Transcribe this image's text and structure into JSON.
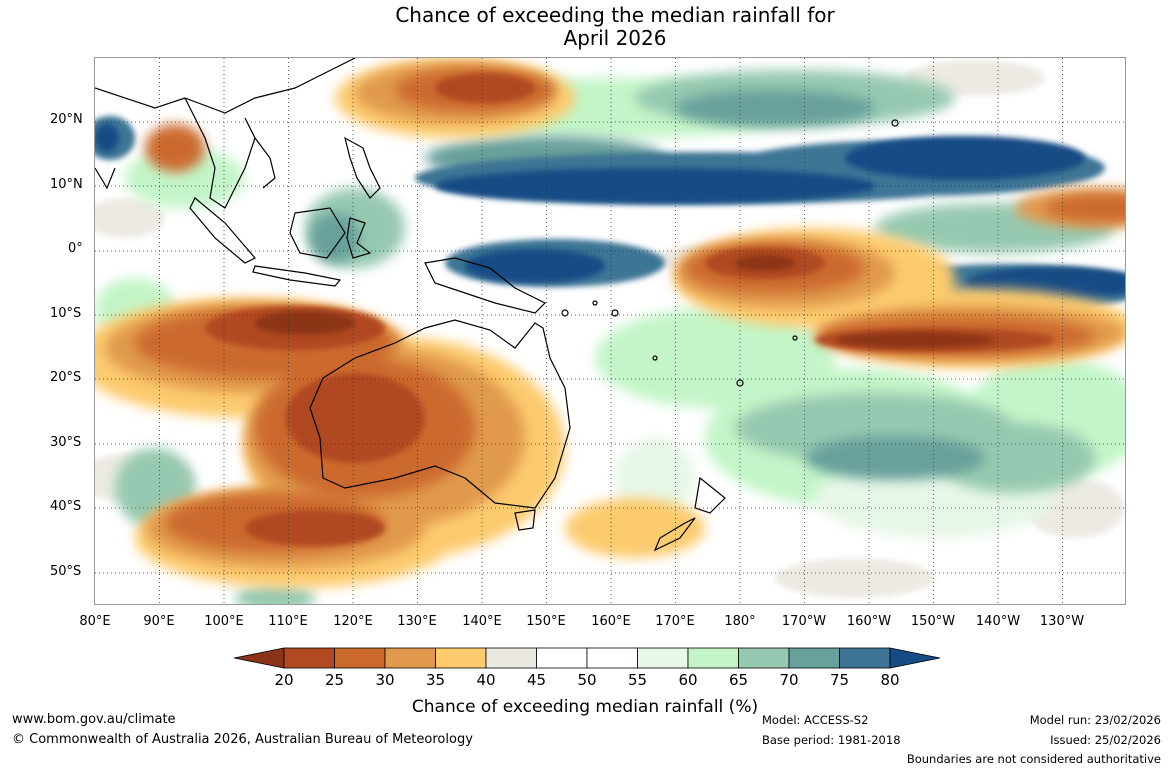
{
  "title": {
    "line1": "Chance of exceeding the median rainfall for",
    "line2": "April 2026"
  },
  "axes": {
    "lat_labels": [
      "20°N",
      "10°N",
      "0°",
      "10°S",
      "20°S",
      "30°S",
      "40°S",
      "50°S"
    ],
    "lon_labels": [
      "80°E",
      "90°E",
      "100°E",
      "110°E",
      "120°E",
      "130°E",
      "140°E",
      "150°E",
      "160°E",
      "170°E",
      "180°",
      "170°W",
      "160°W",
      "150°W",
      "140°W",
      "130°W"
    ]
  },
  "colorbar": {
    "title": "Chance of exceeding median rainfall (%)",
    "ticks": [
      "20",
      "25",
      "30",
      "35",
      "40",
      "45",
      "50",
      "55",
      "60",
      "65",
      "70",
      "75",
      "80"
    ],
    "colors": [
      "#8c3419",
      "#b04a20",
      "#cc6a2e",
      "#e19a4d",
      "#fccb6e",
      "#ebe8e1",
      "#ffffff",
      "#ffffff",
      "#e7f7e8",
      "#c3f5c8",
      "#96c9b1",
      "#68a09b",
      "#3d7495",
      "#154c85"
    ]
  },
  "footer": {
    "website": "www.bom.gov.au/climate",
    "copyright": "© Commonwealth of Australia 2026, Australian Bureau of Meteorology",
    "model": "Model: ACCESS-S2",
    "base_period": "Base period: 1981-2018",
    "model_run": "Model run: 23/02/2026",
    "issued": "Issued: 25/02/2026",
    "disclaimer": "Boundaries are not considered authoritative"
  }
}
